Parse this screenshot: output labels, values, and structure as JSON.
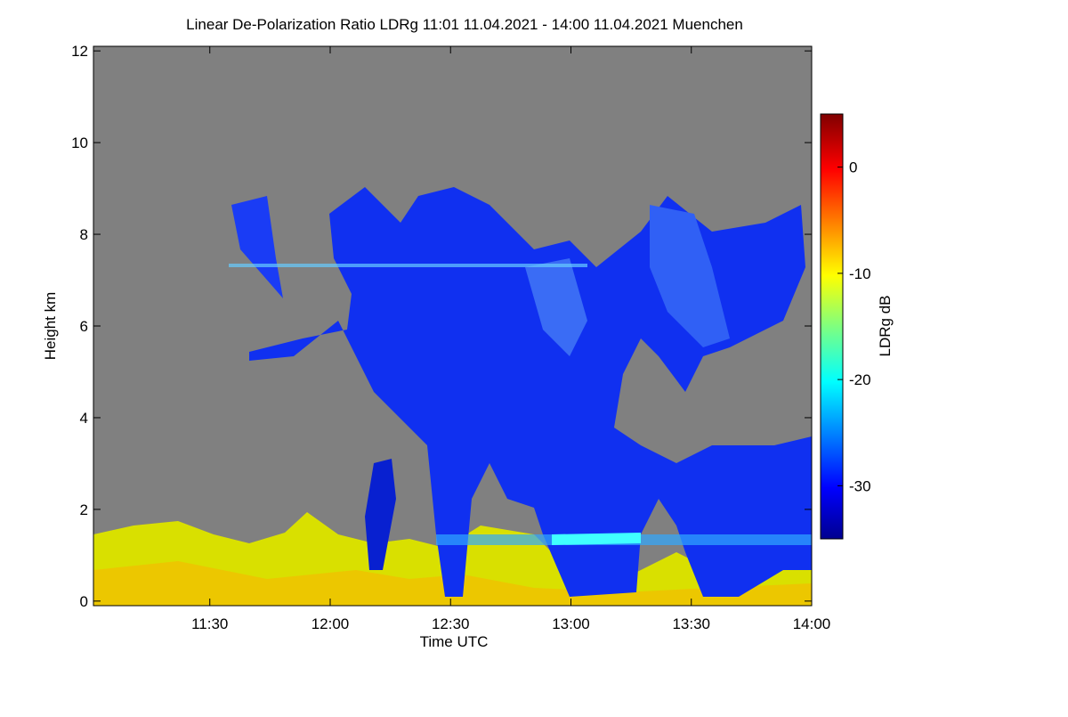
{
  "chart_data": {
    "type": "heatmap",
    "title": "Linear De-Polarization Ratio LDRg   11:01 11.04.2021 - 14:00 11.04.2021 Muenchen",
    "x_label": "Time UTC",
    "y_label": "Height km",
    "xlim": [
      11.0167,
      14.0
    ],
    "xticks": [
      {
        "value": 11.5,
        "label": "11:30"
      },
      {
        "value": 12.0,
        "label": "12:00"
      },
      {
        "value": 12.5,
        "label": "12:30"
      },
      {
        "value": 13.0,
        "label": "13:00"
      },
      {
        "value": 13.5,
        "label": "13:30"
      },
      {
        "value": 14.0,
        "label": "14:00"
      }
    ],
    "ylim": [
      -0.1,
      12.1
    ],
    "yticks": [
      0,
      2,
      4,
      6,
      8,
      10,
      12
    ],
    "colorbar_label": "LDRg dB",
    "clim": [
      -35,
      5
    ],
    "cticks": [
      0,
      -10,
      -20,
      -30
    ]
  }
}
